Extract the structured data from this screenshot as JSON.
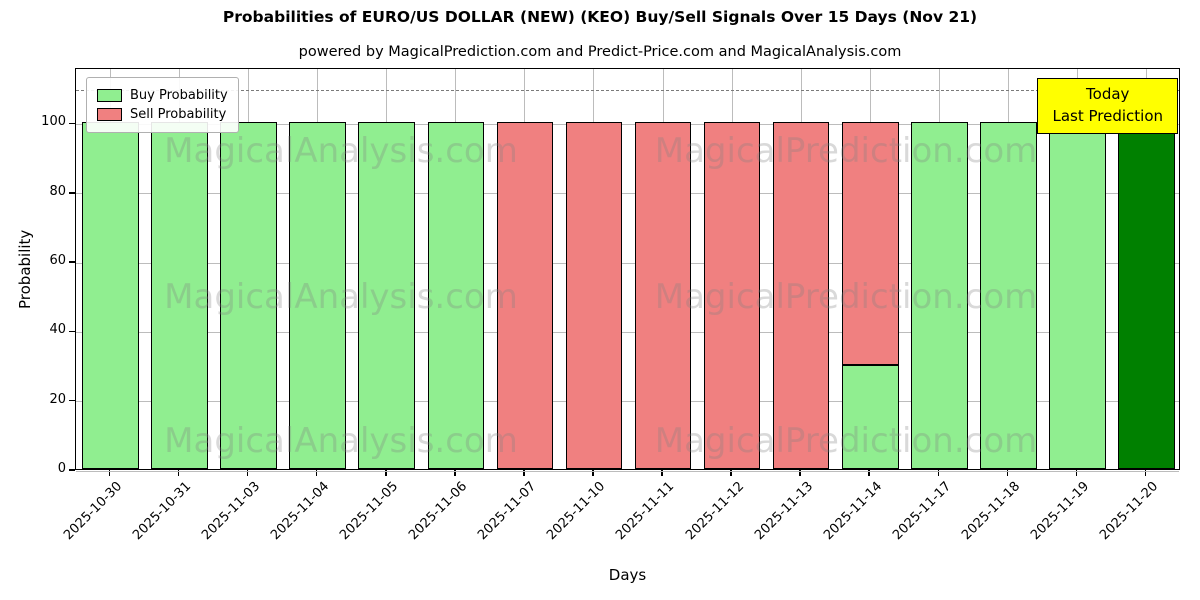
{
  "title": "Probabilities of EURO/US DOLLAR (NEW) (KEO) Buy/Sell Signals Over 15 Days (Nov 21)",
  "subtitle": "powered by MagicalPrediction.com and Predict-Price.com and MagicalAnalysis.com",
  "legend": [
    {
      "label": "Buy Probability",
      "color": "#90EE90"
    },
    {
      "label": "Sell Probability",
      "color": "#F08080"
    }
  ],
  "today_box": {
    "lines": [
      "Today",
      "Last Prediction"
    ],
    "bg": "#FFFF00"
  },
  "watermarks": {
    "texts": [
      "MagicalAnalysis.com",
      "MagicalPrediction.com"
    ]
  },
  "chart_data": {
    "type": "bar",
    "stacked": true,
    "title": "Probabilities of EURO/US DOLLAR (NEW) (KEO) Buy/Sell Signals Over 15 Days (Nov 21)",
    "xlabel": "Days",
    "ylabel": "Probability",
    "ylim": [
      0,
      116
    ],
    "yticks": [
      0,
      20,
      40,
      60,
      80,
      100
    ],
    "dashed_line_y": 110,
    "grid": true,
    "legend_position": "upper left",
    "categories": [
      "2025-10-30",
      "2025-10-31",
      "2025-11-03",
      "2025-11-04",
      "2025-11-05",
      "2025-11-06",
      "2025-11-07",
      "2025-11-10",
      "2025-11-11",
      "2025-11-12",
      "2025-11-13",
      "2025-11-14",
      "2025-11-17",
      "2025-11-18",
      "2025-11-19",
      "2025-11-20"
    ],
    "series": [
      {
        "name": "Buy Probability",
        "color": "#90EE90",
        "values": [
          100,
          100,
          100,
          100,
          100,
          100,
          0,
          0,
          0,
          0,
          0,
          30,
          100,
          100,
          100,
          100
        ]
      },
      {
        "name": "Sell Probability",
        "color": "#F08080",
        "values": [
          0,
          0,
          0,
          0,
          0,
          0,
          100,
          100,
          100,
          100,
          100,
          70,
          0,
          0,
          0,
          0
        ]
      }
    ],
    "today_bar_index": 15,
    "today_bar_color": "#008000"
  }
}
